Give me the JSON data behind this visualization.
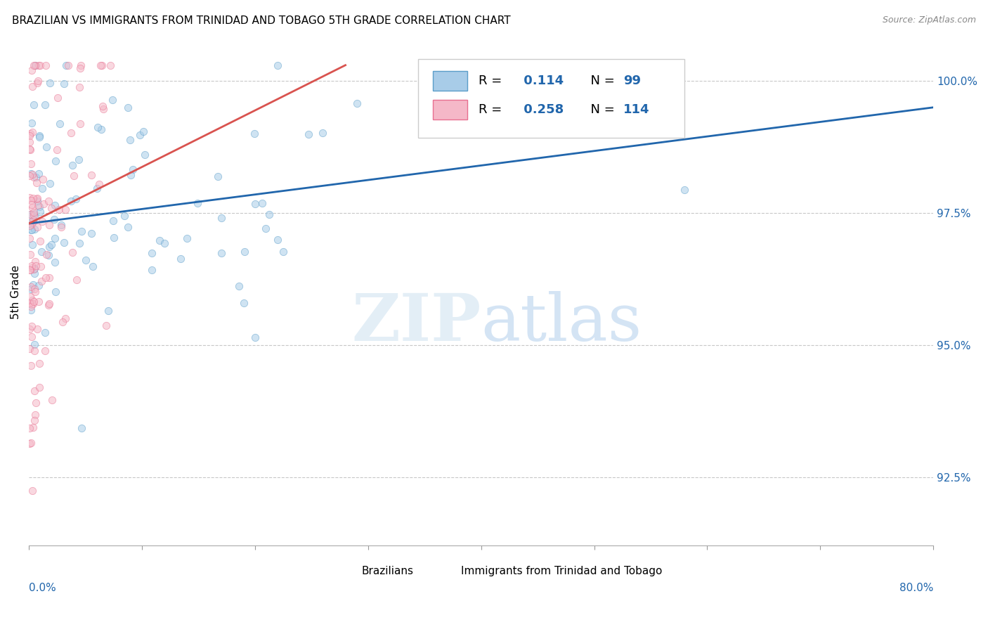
{
  "title": "BRAZILIAN VS IMMIGRANTS FROM TRINIDAD AND TOBAGO 5TH GRADE CORRELATION CHART",
  "source": "Source: ZipAtlas.com",
  "ylabel": "5th Grade",
  "ylabel_right_ticks": [
    100.0,
    97.5,
    95.0,
    92.5
  ],
  "ylabel_right_labels": [
    "100.0%",
    "97.5%",
    "95.0%",
    "92.5%"
  ],
  "xmin": 0.0,
  "xmax": 80.0,
  "ymin": 91.2,
  "ymax": 100.8,
  "blue_R": 0.114,
  "blue_N": 99,
  "pink_R": 0.258,
  "pink_N": 114,
  "blue_color": "#a8cce8",
  "pink_color": "#f5b8c8",
  "blue_edge_color": "#5b9ec9",
  "pink_edge_color": "#e87090",
  "blue_line_color": "#2166ac",
  "pink_line_color": "#d9534f",
  "right_axis_color": "#2166ac",
  "legend_label1": "Brazilians",
  "legend_label2": "Immigrants from Trinidad and Tobago",
  "watermark": "ZIPatlas",
  "title_fontsize": 11,
  "source_fontsize": 9,
  "scatter_size": 55,
  "scatter_alpha": 0.55,
  "blue_trend_x": [
    0.0,
    80.0
  ],
  "blue_trend_y": [
    97.3,
    99.5
  ],
  "pink_trend_x": [
    0.0,
    28.0
  ],
  "pink_trend_y": [
    97.3,
    100.3
  ]
}
